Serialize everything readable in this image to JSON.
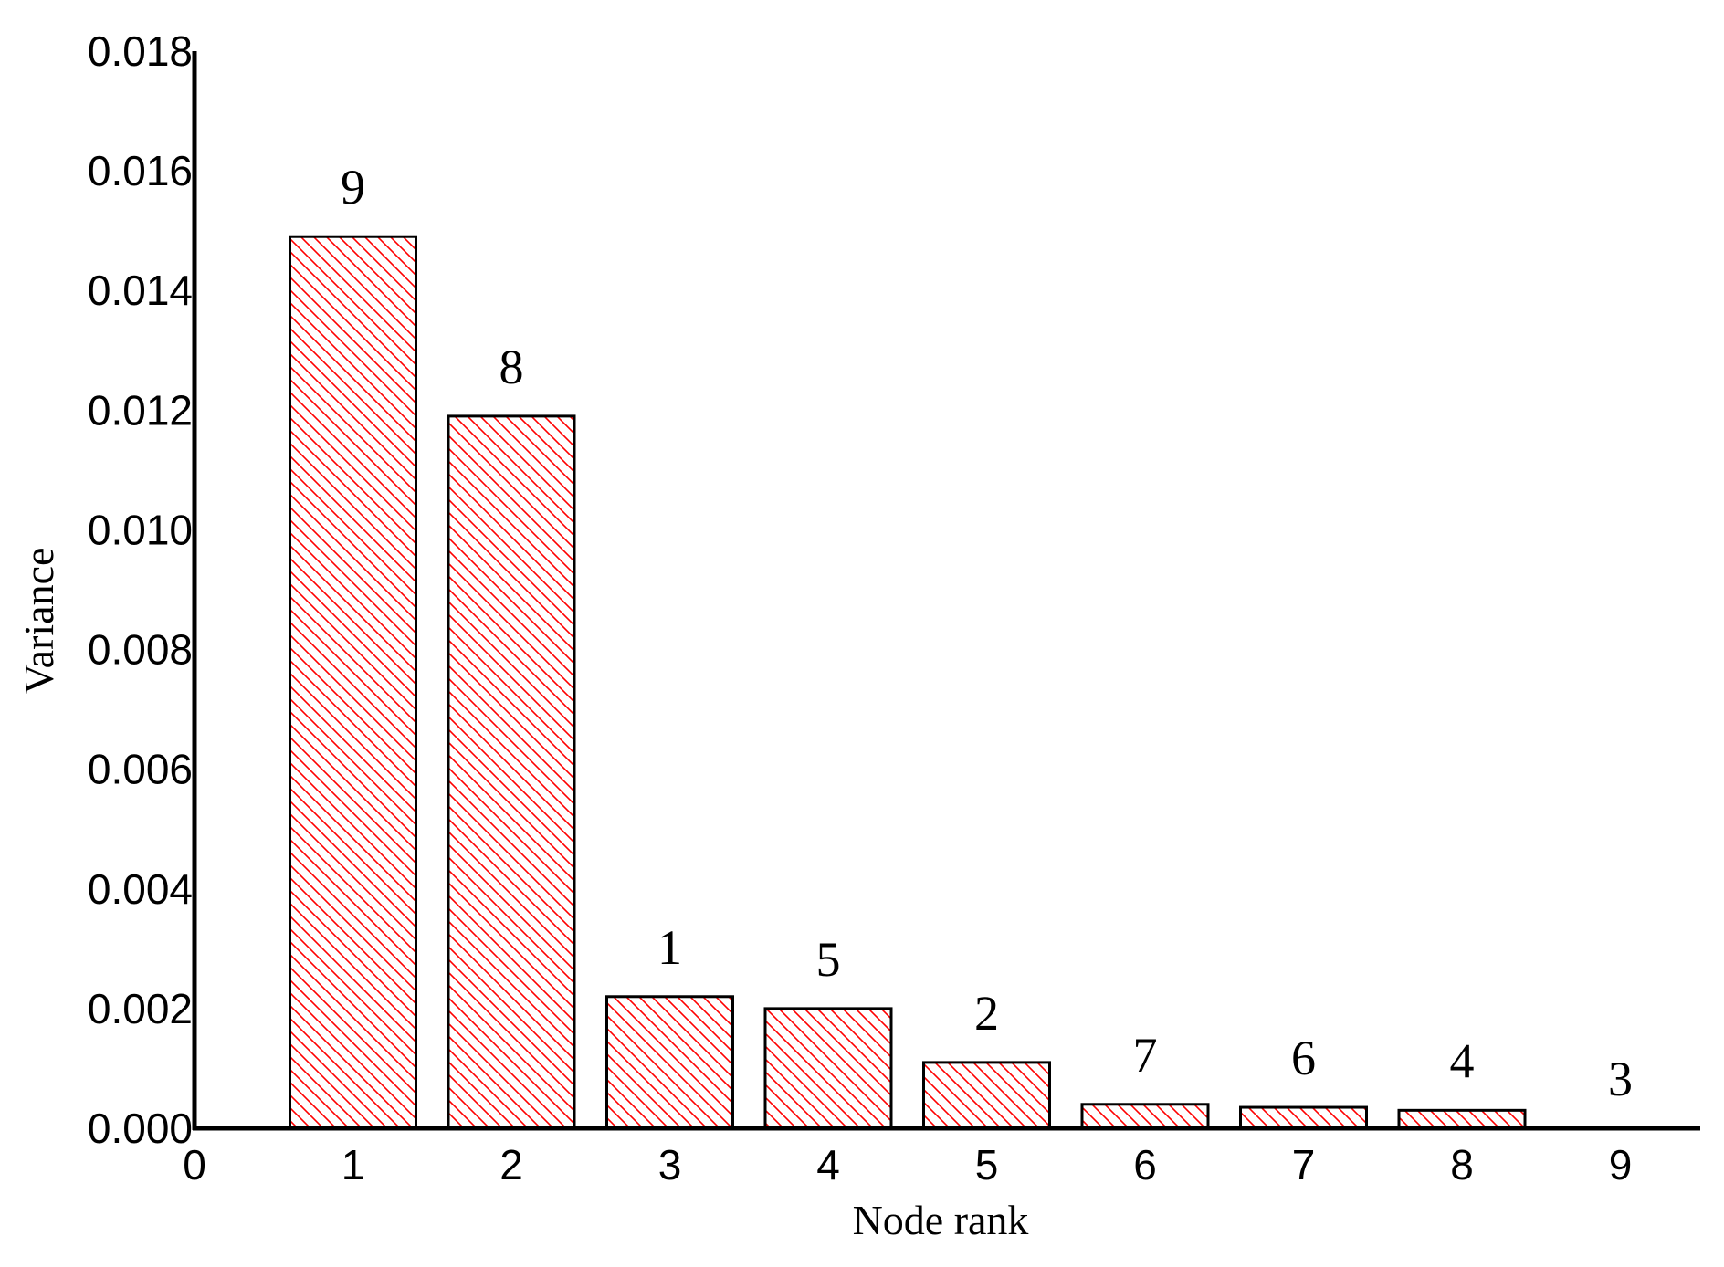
{
  "chart_data": {
    "type": "bar",
    "xlabel": "Node rank",
    "ylabel": "Variance",
    "xlim": [
      0,
      9.5
    ],
    "ylim": [
      0,
      0.018
    ],
    "x_ticks": [
      "0",
      "1",
      "2",
      "3",
      "4",
      "5",
      "6",
      "7",
      "8",
      "9"
    ],
    "y_ticks": [
      "0.000",
      "0.002",
      "0.004",
      "0.006",
      "0.008",
      "0.010",
      "0.012",
      "0.014",
      "0.016",
      "0.018"
    ],
    "grid": false,
    "legend": "none",
    "bar_fill": "red diagonal hatch",
    "hatch_color": "#ff0000",
    "bars": [
      {
        "rank": 1,
        "value": 0.0149,
        "label": "9"
      },
      {
        "rank": 2,
        "value": 0.0119,
        "label": "8"
      },
      {
        "rank": 3,
        "value": 0.0022,
        "label": "1"
      },
      {
        "rank": 4,
        "value": 0.002,
        "label": "5"
      },
      {
        "rank": 5,
        "value": 0.0011,
        "label": "2"
      },
      {
        "rank": 6,
        "value": 0.0004,
        "label": "7"
      },
      {
        "rank": 7,
        "value": 0.00035,
        "label": "6"
      },
      {
        "rank": 8,
        "value": 0.0003,
        "label": "4"
      },
      {
        "rank": 9,
        "value": 0.0,
        "label": "3"
      }
    ]
  }
}
